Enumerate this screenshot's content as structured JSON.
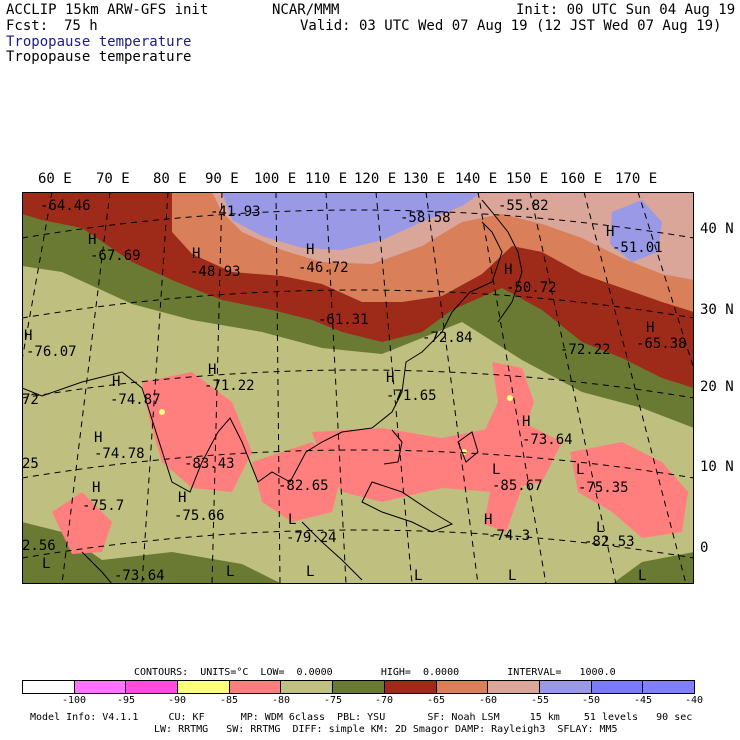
{
  "header": {
    "model": "ACCLIP 15km ARW-GFS init",
    "org": "NCAR/MMM",
    "init": "Init: 00 UTC Sun 04 Aug 19",
    "fcst_label": "Fcst:",
    "fcst_value": "75 h",
    "valid": "Valid: 03 UTC Wed 07 Aug 19 (12 JST Wed 07 Aug 19)",
    "field_title_1": "Tropopause temperature",
    "field_title_2": "Tropopause temperature"
  },
  "colors": {
    "field_title_1": "#1a1a8c",
    "field_title_2": "#000000"
  },
  "map": {
    "lon_labels": [
      "60 E",
      "70 E",
      "80 E",
      "90 E",
      "100 E",
      "110 E",
      "120 E",
      "130 E",
      "140 E",
      "150 E",
      "160 E",
      "170 E"
    ],
    "lat_labels": [
      "40 N",
      "30 N",
      "20 N",
      "10 N",
      "0"
    ],
    "highs": [
      "H",
      "H",
      "H",
      "H",
      "H",
      "H",
      "H",
      "H",
      "H",
      "H",
      "H",
      "H",
      "H",
      "H",
      "H"
    ],
    "lows": [
      "L",
      "L",
      "L",
      "L",
      "L",
      "L",
      "L",
      "L",
      "L",
      "L"
    ],
    "values": [
      "-64.46",
      "-41.93",
      "-58.58",
      "-55.82",
      "-67.69",
      "-48.93",
      "-46.72",
      "-51.01",
      "-50.72",
      "-61.31",
      "-76.07",
      "-72.22",
      "-65.38",
      "-72.84",
      "-71.22",
      "-74.87",
      "-71.65",
      "-73.64",
      "-74.78",
      "-83.43",
      "-82.65",
      "-85.67",
      "-75.35",
      "-75.7",
      "-75.66",
      "-79.24",
      "-74.3",
      "-82.53",
      "-73.64",
      "72",
      "25",
      "2.56"
    ]
  },
  "colorbar": {
    "colors": [
      "#ffffff",
      "#ff73ff",
      "#ff4dd9",
      "#ffff80",
      "#ff7f7f",
      "#bfbf80",
      "#6b7a33",
      "#9e2a1a",
      "#d9805a",
      "#d9a699",
      "#9999e6",
      "#7a7aff",
      "#8080ff"
    ],
    "labels": [
      "-100",
      "-95",
      "-90",
      "-85",
      "-80",
      "-75",
      "-70",
      "-65",
      "-60",
      "-55",
      "-50",
      "-45",
      "-40",
      "°C"
    ],
    "contours_line": "CONTOURS:  UNITS=°C  LOW=  0.0000        HIGH=  0.0000        INTERVAL=   1000.0"
  },
  "footer": {
    "line1": "Model Info: V4.1.1     CU: KF      MP: WDM 6class  PBL: YSU       SF: Noah LSM     15 km    51 levels   90 sec",
    "line2": "LW: RRTMG   SW: RRTMG  DIFF: simple KM: 2D Smagor DAMP: Rayleigh3  SFLAY: MM5"
  }
}
